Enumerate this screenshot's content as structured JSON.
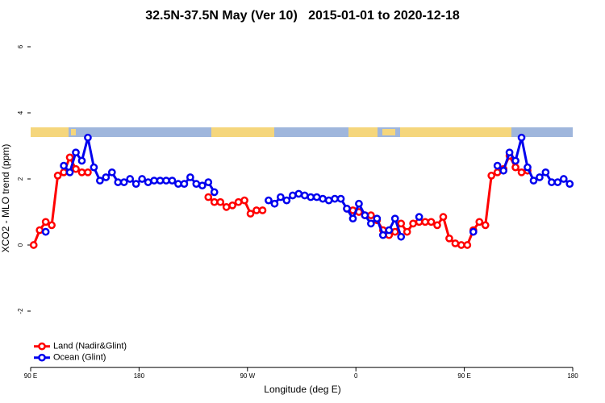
{
  "chart_data": {
    "type": "line",
    "title": "32.5N-37.5N May (Ver 10)   2015-01-01 to 2020-12-18",
    "xlabel": "Longitude (deg E)",
    "ylabel": "XCO2 - MLO trend (ppm)",
    "x": [
      92.5,
      97.5,
      102.5,
      107.5,
      112.5,
      117.5,
      122.5,
      127.5,
      132.5,
      137.5,
      142.5,
      147.5,
      152.5,
      157.5,
      162.5,
      167.5,
      172.5,
      177.5,
      182.5,
      187.5,
      192.5,
      197.5,
      202.5,
      207.5,
      212.5,
      217.5,
      222.5,
      227.5,
      232.5,
      237.5,
      242.5,
      247.5,
      252.5,
      257.5,
      262.5,
      267.5,
      272.5,
      277.5,
      282.5,
      287.5,
      292.5,
      297.5,
      302.5,
      307.5,
      312.5,
      317.5,
      322.5,
      327.5,
      332.5,
      337.5,
      342.5,
      347.5,
      352.5,
      357.5,
      362.5,
      367.5,
      372.5,
      377.5,
      382.5,
      387.5,
      392.5,
      397.5,
      402.5,
      407.5,
      412.5,
      417.5,
      422.5,
      427.5,
      432.5,
      437.5,
      442.5,
      447.5,
      452.5,
      457.5,
      462.5,
      467.5,
      472.5,
      477.5,
      482.5,
      487.5,
      492.5,
      497.5,
      502.5,
      507.5,
      512.5,
      517.5,
      522.5,
      527.5,
      532.5,
      537.5
    ],
    "series": [
      {
        "name": "Land (Nadir&Glint)",
        "color": "#ff0000",
        "values": [
          0,
          0.45,
          0.7,
          0.6,
          2.1,
          2.2,
          2.65,
          2.3,
          2.2,
          2.2,
          null,
          null,
          null,
          null,
          null,
          null,
          null,
          null,
          null,
          null,
          null,
          null,
          null,
          null,
          null,
          null,
          null,
          null,
          null,
          1.45,
          1.3,
          1.3,
          1.15,
          1.2,
          1.3,
          1.35,
          0.95,
          1.05,
          1.05,
          null,
          null,
          null,
          null,
          null,
          null,
          null,
          null,
          null,
          null,
          null,
          null,
          null,
          1.1,
          1.05,
          1.0,
          0.9,
          0.9,
          0.75,
          0.45,
          0.3,
          0.4,
          0.65,
          0.4,
          0.65,
          0.7,
          0.7,
          0.7,
          0.6,
          0.85,
          0.2,
          0.05,
          0,
          0,
          0.45,
          0.7,
          0.6,
          2.1,
          2.2,
          2.3,
          2.7,
          2.35,
          2.2,
          2.25,
          null,
          null,
          null,
          null,
          null,
          null,
          null
        ]
      },
      {
        "name": "Ocean (Glint)",
        "color": "#0000ee",
        "values": [
          null,
          null,
          0.4,
          null,
          null,
          2.4,
          2.2,
          2.8,
          2.55,
          3.25,
          2.35,
          1.95,
          2.05,
          2.2,
          1.9,
          1.9,
          2.0,
          1.85,
          2.0,
          1.9,
          1.95,
          1.95,
          1.95,
          1.95,
          1.85,
          1.85,
          2.05,
          1.85,
          1.8,
          1.9,
          1.6,
          null,
          null,
          null,
          null,
          null,
          null,
          null,
          null,
          1.35,
          1.25,
          1.45,
          1.35,
          1.5,
          1.55,
          1.5,
          1.45,
          1.45,
          1.4,
          1.35,
          1.4,
          1.4,
          1.1,
          0.8,
          1.25,
          0.9,
          0.65,
          0.8,
          0.3,
          0.45,
          0.8,
          0.25,
          null,
          null,
          0.85,
          null,
          null,
          null,
          null,
          null,
          null,
          null,
          null,
          0.4,
          null,
          null,
          null,
          2.4,
          2.25,
          2.8,
          2.55,
          3.25,
          2.35,
          1.95,
          2.05,
          2.2,
          1.9,
          1.9,
          2.0,
          1.85
        ]
      }
    ],
    "xlim": [
      90,
      540
    ],
    "xticks": [
      {
        "value": 90,
        "label": "90 E"
      },
      {
        "value": 180,
        "label": "180"
      },
      {
        "value": 270,
        "label": "90 W"
      },
      {
        "value": 360,
        "label": "0"
      },
      {
        "value": 450,
        "label": "90 E"
      },
      {
        "value": 540,
        "label": "180"
      }
    ],
    "ylim": [
      -3.7,
      6.5
    ],
    "yticks": [
      -2,
      0,
      2,
      4,
      6
    ],
    "legend": "bottomleft"
  }
}
